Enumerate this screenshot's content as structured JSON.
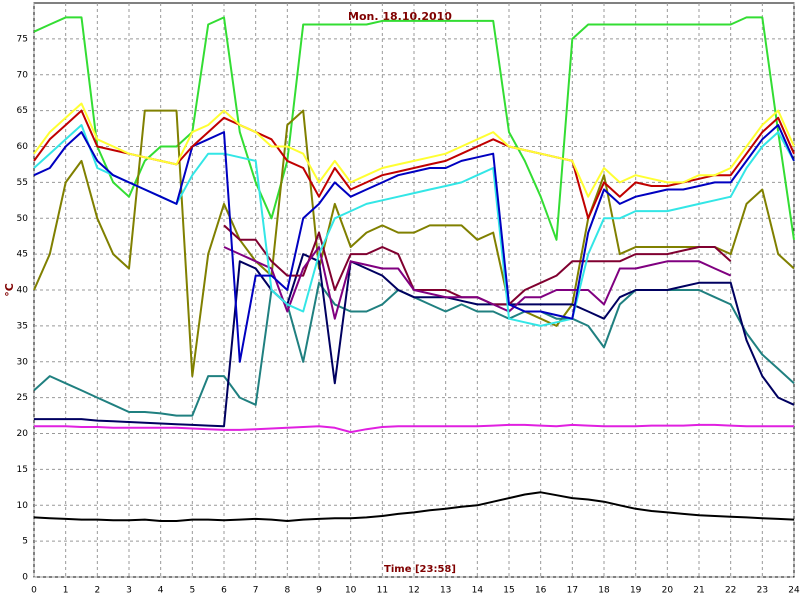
{
  "chart_data": {
    "type": "line",
    "title": "Mon. 18.10.2010",
    "xlabel": "Time [23:58]",
    "ylabel": "°C",
    "x": [
      0,
      0.5,
      1,
      1.5,
      2,
      2.5,
      3,
      3.5,
      4,
      4.5,
      5,
      5.5,
      6,
      6.5,
      7,
      7.5,
      8,
      8.5,
      9,
      9.5,
      10,
      10.5,
      11,
      11.5,
      12,
      12.5,
      13,
      13.5,
      14,
      14.5,
      15,
      15.5,
      16,
      16.5,
      17,
      17.5,
      18,
      18.5,
      19,
      19.5,
      20,
      20.5,
      21,
      21.5,
      22,
      22.5,
      23,
      23.5,
      24
    ],
    "series": [
      {
        "color": "#33dd33",
        "values": [
          76,
          77,
          78,
          78,
          60,
          55,
          53,
          58,
          60,
          60,
          62,
          77,
          78,
          62,
          55,
          50,
          58,
          77,
          77,
          77,
          77,
          77,
          77.5,
          77.5,
          77.5,
          77.5,
          77.5,
          77.5,
          77.5,
          77.5,
          62,
          58,
          53,
          47,
          75,
          77,
          77,
          77,
          77,
          77,
          77,
          77,
          77,
          77,
          77,
          78,
          78,
          62,
          47
        ]
      },
      {
        "color": "#808000",
        "values": [
          40,
          45,
          55,
          58,
          50,
          45,
          43,
          65,
          65,
          65,
          28,
          45,
          52,
          47,
          44,
          42,
          63,
          65,
          43,
          52,
          46,
          48,
          49,
          48,
          48,
          49,
          49,
          49,
          47,
          48,
          38,
          37,
          36,
          35,
          38,
          50,
          56,
          45,
          46,
          46,
          46,
          46,
          46,
          46,
          45,
          52,
          54,
          45,
          43
        ]
      },
      {
        "color": "#208080",
        "values": [
          26,
          28,
          27,
          26,
          25,
          24,
          23,
          23,
          22.8,
          22.5,
          22.5,
          28,
          28,
          25,
          24,
          40,
          38,
          30,
          41,
          38,
          37,
          37,
          38,
          40,
          39,
          38,
          37,
          38,
          37,
          37,
          36,
          37,
          37,
          36,
          36,
          35,
          32,
          38,
          40,
          40,
          40,
          40,
          40,
          39,
          38,
          34,
          31,
          29,
          27
        ]
      },
      {
        "color": "#000060",
        "values": [
          22,
          22,
          22,
          22,
          21.8,
          21.7,
          21.6,
          21.5,
          21.4,
          21.3,
          21.2,
          21.1,
          21,
          44,
          43,
          40,
          38,
          45,
          44,
          27,
          44,
          43,
          42,
          40,
          39,
          39,
          39,
          38.5,
          38,
          38,
          38,
          38,
          38,
          38,
          38,
          37,
          36,
          39,
          40,
          40,
          40,
          40.5,
          41,
          41,
          41,
          33,
          28,
          25,
          24
        ]
      },
      {
        "color": "#800030",
        "values": [
          null,
          null,
          null,
          null,
          null,
          null,
          null,
          null,
          null,
          null,
          null,
          null,
          49,
          47,
          47,
          44,
          42,
          42,
          48,
          40,
          45,
          45,
          46,
          45,
          40,
          40,
          40,
          39,
          39,
          38,
          38,
          40,
          41,
          42,
          44,
          44,
          44,
          44,
          45,
          45,
          45,
          45.5,
          46,
          46,
          44,
          null,
          null,
          null,
          null
        ]
      },
      {
        "color": "#800080",
        "values": [
          null,
          null,
          null,
          null,
          null,
          null,
          null,
          null,
          null,
          null,
          null,
          null,
          46,
          45,
          44,
          43,
          37,
          43,
          46,
          36,
          44,
          43.5,
          43,
          43,
          40,
          39.5,
          39,
          39,
          39,
          38,
          37,
          39,
          39,
          40,
          40,
          40,
          38,
          43,
          43,
          43.5,
          44,
          44,
          44,
          43,
          42,
          null,
          null,
          null,
          null
        ]
      },
      {
        "color": "#33e6e6",
        "values": [
          57,
          59,
          61,
          63,
          57,
          56,
          55,
          54,
          53,
          52,
          56,
          59,
          59,
          58.5,
          58,
          40,
          38,
          37,
          45,
          50,
          51,
          52,
          52.5,
          53,
          53.5,
          54,
          54.5,
          55,
          56,
          57,
          36,
          35.5,
          35,
          35.5,
          36,
          45,
          50,
          50,
          51,
          51,
          51,
          51.5,
          52,
          52.5,
          53,
          57,
          60,
          62,
          58
        ]
      },
      {
        "color": "#0000c0",
        "values": [
          56,
          57,
          60,
          62,
          58,
          56,
          55,
          54,
          53,
          52,
          60,
          61,
          62,
          30,
          42,
          42,
          40,
          50,
          52,
          55,
          53,
          54,
          55,
          56,
          56.5,
          57,
          57,
          58,
          58.5,
          59,
          38,
          37,
          37,
          36.5,
          36,
          48,
          54,
          52,
          53,
          53.5,
          54,
          54,
          54.5,
          55,
          55,
          58,
          61,
          63,
          58
        ]
      },
      {
        "color": "#c00000",
        "values": [
          58,
          61,
          63,
          65,
          60,
          59.5,
          59,
          58.5,
          58,
          57.5,
          60,
          62,
          64,
          63,
          62,
          61,
          58,
          57,
          53,
          57,
          54,
          55,
          56,
          56.5,
          57,
          57.5,
          58,
          59,
          60,
          61,
          60,
          59.5,
          59,
          58.5,
          58,
          50,
          55,
          53,
          55,
          54.5,
          54.5,
          55,
          55.5,
          56,
          56,
          59,
          62,
          64,
          59
        ]
      },
      {
        "color": "#ffff33",
        "values": [
          59,
          62,
          64,
          66,
          61,
          60,
          59,
          58.5,
          58,
          57.5,
          62,
          63,
          65,
          63,
          62,
          60,
          60,
          59,
          55,
          58,
          55,
          56,
          57,
          57.5,
          58,
          58.5,
          59,
          60,
          61,
          62,
          60,
          59.5,
          59,
          58.5,
          58,
          53,
          57,
          55,
          56,
          55.5,
          55,
          55,
          56,
          56,
          57,
          60,
          63,
          65,
          60
        ]
      },
      {
        "color": "#e020e0",
        "values": [
          21,
          21,
          21,
          20.9,
          20.9,
          20.8,
          20.8,
          20.8,
          20.8,
          20.8,
          20.7,
          20.6,
          20.5,
          20.5,
          20.6,
          20.7,
          20.8,
          20.9,
          21,
          20.8,
          20.2,
          20.6,
          20.9,
          21,
          21,
          21,
          21,
          21,
          21,
          21.1,
          21.2,
          21.2,
          21.1,
          21,
          21.2,
          21.1,
          21,
          21,
          21,
          21.1,
          21.1,
          21.1,
          21.2,
          21.2,
          21.1,
          21,
          21,
          21,
          21
        ]
      },
      {
        "color": "#000000",
        "values": [
          8.3,
          8.2,
          8.1,
          8,
          8,
          7.9,
          7.9,
          8,
          7.8,
          7.8,
          8,
          8,
          7.9,
          8,
          8.1,
          8,
          7.8,
          8,
          8.1,
          8.2,
          8.2,
          8.3,
          8.5,
          8.8,
          9,
          9.3,
          9.5,
          9.8,
          10,
          10.5,
          11,
          11.5,
          11.8,
          11.4,
          11,
          10.8,
          10.5,
          10,
          9.5,
          9.2,
          9,
          8.8,
          8.6,
          8.5,
          8.4,
          8.3,
          8.2,
          8.1,
          8
        ]
      }
    ],
    "xlim": [
      0,
      24
    ],
    "ylim": [
      0,
      80
    ],
    "xticks": [
      0,
      1,
      2,
      3,
      4,
      5,
      6,
      7,
      8,
      9,
      10,
      11,
      12,
      13,
      14,
      15,
      16,
      17,
      18,
      19,
      20,
      21,
      22,
      23,
      24
    ],
    "yticks": [
      0,
      5,
      10,
      15,
      20,
      25,
      30,
      35,
      40,
      45,
      50,
      55,
      60,
      65,
      70,
      75
    ],
    "grid": true,
    "text_color": "#800000"
  }
}
